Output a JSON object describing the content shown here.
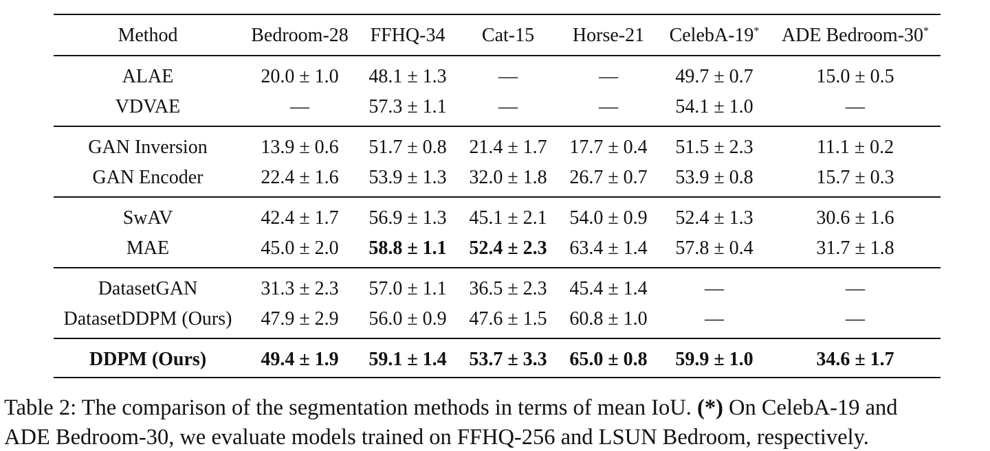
{
  "table": {
    "columns": [
      "Method",
      "Bedroom-28",
      "FFHQ-34",
      "Cat-15",
      "Horse-21",
      "CelebA-19",
      "ADE Bedroom-30"
    ],
    "column_marks": [
      "",
      "",
      "",
      "",
      "",
      "*",
      "*"
    ],
    "rows": [
      {
        "cells": [
          "ALAE",
          "20.0 ± 1.0",
          "48.1 ± 1.3",
          "—",
          "—",
          "49.7 ± 0.7",
          "15.0 ± 0.5"
        ],
        "bold": []
      },
      {
        "cells": [
          "VDVAE",
          "—",
          "57.3 ± 1.1",
          "—",
          "—",
          "54.1 ± 1.0",
          "—"
        ],
        "bold": []
      },
      {
        "cells": [
          "GAN Inversion",
          "13.9 ± 0.6",
          "51.7 ± 0.8",
          "21.4 ± 1.7",
          "17.7 ± 0.4",
          "51.5 ± 2.3",
          "11.1 ± 0.2"
        ],
        "bold": []
      },
      {
        "cells": [
          "GAN Encoder",
          "22.4 ± 1.6",
          "53.9 ± 1.3",
          "32.0 ± 1.8",
          "26.7 ± 0.7",
          "53.9 ± 0.8",
          "15.7 ± 0.3"
        ],
        "bold": []
      },
      {
        "cells": [
          "SwAV",
          "42.4 ± 1.7",
          "56.9 ± 1.3",
          "45.1 ± 2.1",
          "54.0 ± 0.9",
          "52.4 ± 1.3",
          "30.6 ± 1.6"
        ],
        "bold": []
      },
      {
        "cells": [
          "MAE",
          "45.0 ± 2.0",
          "58.8 ± 1.1",
          "52.4 ± 2.3",
          "63.4 ± 1.4",
          "57.8 ± 0.4",
          "31.7 ± 1.8"
        ],
        "bold": [
          2,
          3
        ]
      },
      {
        "cells": [
          "DatasetGAN",
          "31.3 ± 2.3",
          "57.0 ± 1.1",
          "36.5 ± 2.3",
          "45.4 ± 1.4",
          "—",
          "—"
        ],
        "bold": []
      },
      {
        "cells": [
          "DatasetDDPM (Ours)",
          "47.9 ± 2.9",
          "56.0 ± 0.9",
          "47.6 ± 1.5",
          "60.8 ± 1.0",
          "—",
          "—"
        ],
        "bold": []
      },
      {
        "cells": [
          "DDPM (Ours)",
          "49.4 ± 1.9",
          "59.1 ± 1.4",
          "53.7 ± 3.3",
          "65.0 ± 0.8",
          "59.9 ± 1.0",
          "34.6 ± 1.7"
        ],
        "bold": [
          0,
          1,
          2,
          3,
          4,
          5,
          6
        ]
      }
    ]
  },
  "caption": {
    "text": "Table 2: The comparison of the segmentation methods in terms of mean IoU. ",
    "marker": "(*)",
    "rest": " On CelebA-19 and",
    "line2": "ADE Bedroom-30, we evaluate models trained on FFHQ-256 and LSUN Bedroom, respectively."
  }
}
